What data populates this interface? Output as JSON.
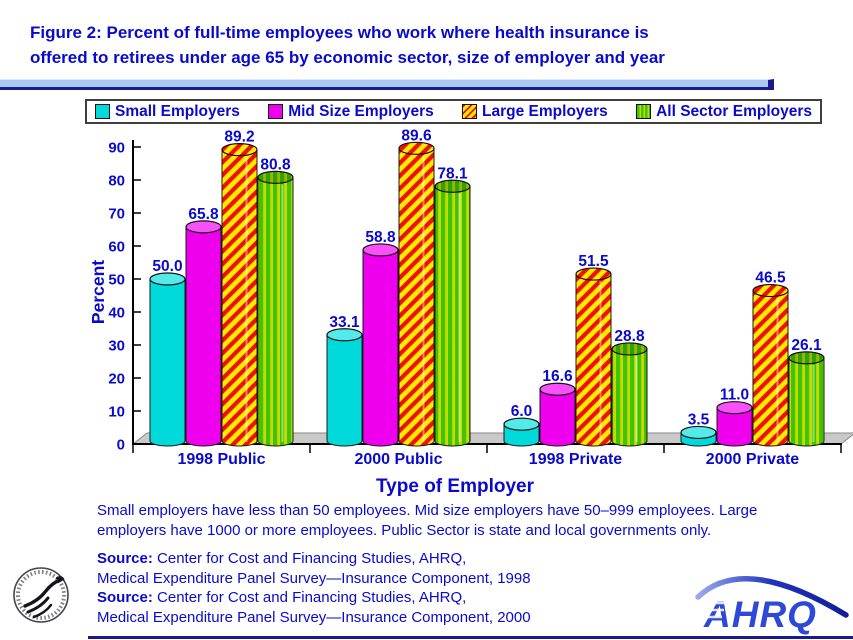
{
  "header": {
    "title_line1": "Figure 2: Percent of full-time employees who work where health insurance is",
    "title_line2": "offered to retirees under age 65 by economic sector, size of employer and year"
  },
  "chart_data": {
    "type": "bar",
    "title": "Figure 2: Percent of full-time employees who work where health insurance is offered to retirees under age 65 by economic sector, size of employer and year",
    "categories": [
      "1998 Public",
      "2000 Public",
      "1998 Private",
      "2000 Private"
    ],
    "series": [
      {
        "key": "small",
        "name": "Small Employers",
        "values": [
          50.0,
          33.1,
          6.0,
          3.5
        ]
      },
      {
        "key": "mid",
        "name": "Mid Size Employers",
        "values": [
          65.8,
          58.8,
          16.6,
          11.0
        ]
      },
      {
        "key": "large",
        "name": "Large Employers",
        "values": [
          89.2,
          89.6,
          51.5,
          46.5
        ]
      },
      {
        "key": "all",
        "name": "All Sector Employers",
        "values": [
          80.8,
          78.1,
          28.8,
          26.1
        ]
      }
    ],
    "xlabel": "Type of Employer",
    "ylabel": "Percent",
    "ylim": [
      0,
      90
    ],
    "ytick_interval": 10,
    "grid": false,
    "legend_position": "top",
    "value_labels": true,
    "bar_style": "3d-cylinder"
  },
  "footnote": {
    "line1": "Small employers have less than 50 employees. Mid size employers have 50–999 employees. Large",
    "line2": "employers have 1000 or more employees. Public Sector is state and local governments only."
  },
  "sources": [
    {
      "prefix": "Source:",
      "line1": "Center for Cost and Financing Studies, AHRQ,",
      "line2": "Medical Expenditure Panel Survey—Insurance Component, 1998"
    },
    {
      "prefix": "Source:",
      "line1": "Center for Cost and Financing Studies, AHRQ,",
      "line2": "Medical Expenditure Panel Survey—Insurance Component, 2000"
    }
  ],
  "logos": {
    "ahrq_text": "AHRQ"
  },
  "colors": {
    "text_blue": "#0A0ACC",
    "axis_black": "#000000",
    "rule_light": "#A9C8F2",
    "rule_dark": "#1A1A8C",
    "floor_gray": "#C9C9C9",
    "ahrq_blue": "#2E49D6",
    "series": {
      "small": {
        "body": "#00DADA",
        "top": "#55EAEA"
      },
      "mid": {
        "body": "#EE00EE",
        "top": "#FA50FA"
      },
      "large": {
        "body": "pattern:hatch",
        "top": "pattern:hatch",
        "bg": "#FFEB00",
        "stripe": "#EE1000"
      },
      "all": {
        "body": "pattern:vstripe",
        "top": "pattern:vstripeTop",
        "bg": "#3FC400",
        "stripe": "#C9DA00",
        "top_bg": "#2EA300",
        "top_stripe": "#9CB700"
      }
    }
  }
}
